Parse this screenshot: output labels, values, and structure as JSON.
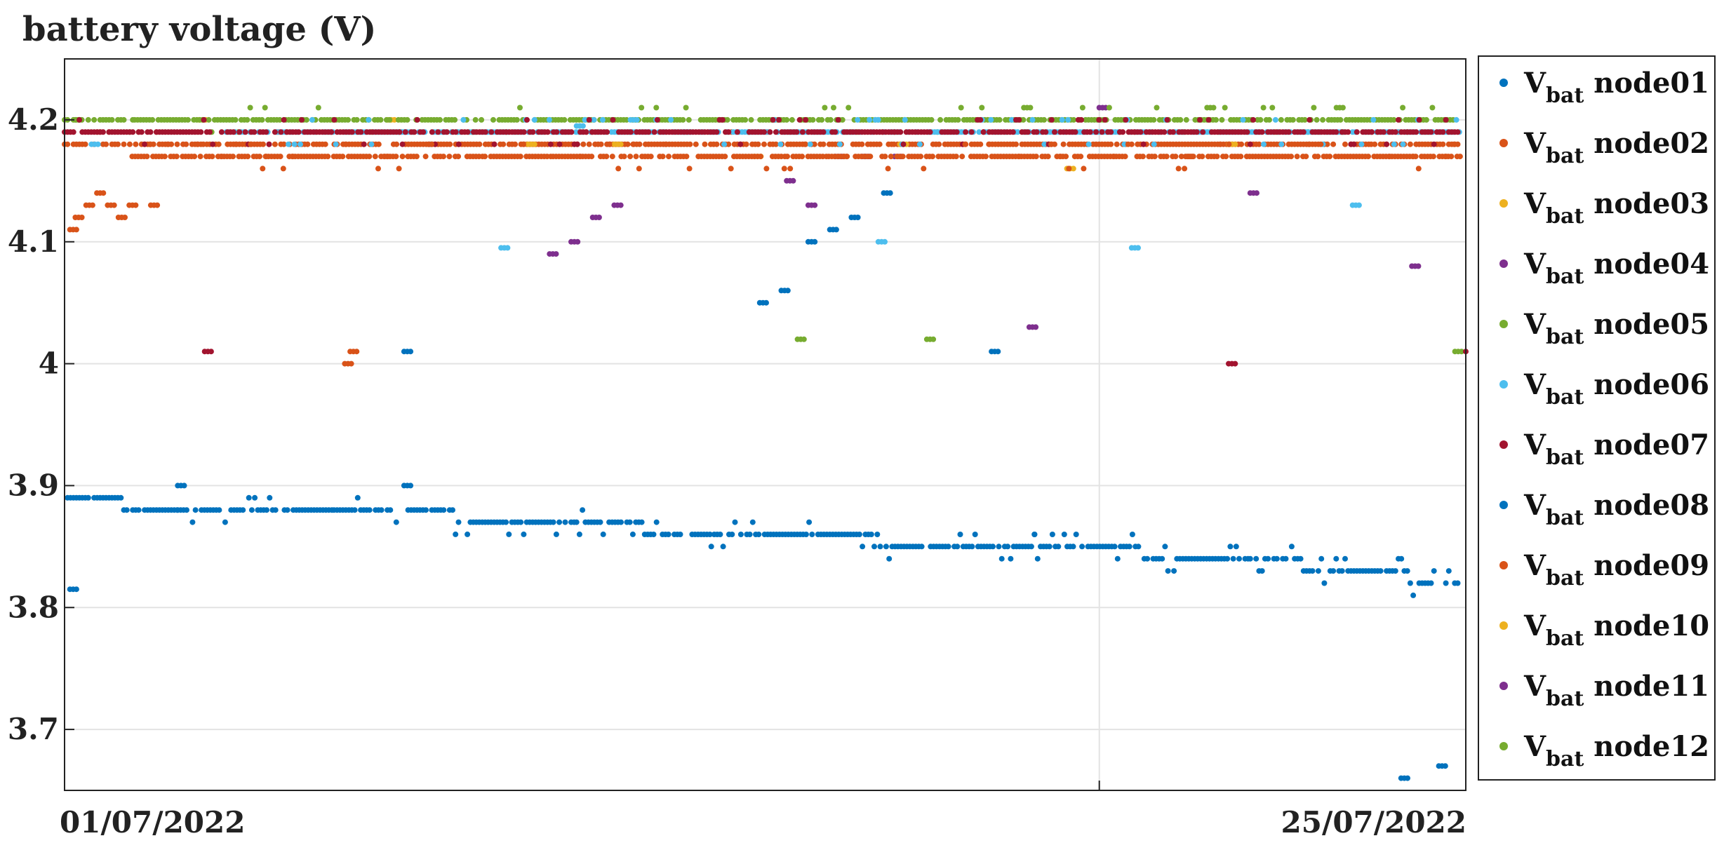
{
  "chart_data": {
    "type": "scatter",
    "title": "battery voltage (V)",
    "xlabel": "",
    "ylabel": "",
    "x_range": [
      "01/07/2022",
      "26/07/2022"
    ],
    "ylim": [
      3.65,
      4.25
    ],
    "y_ticks": [
      3.7,
      3.8,
      3.9,
      4.0,
      4.1,
      4.2
    ],
    "y_tick_labels": [
      "3.7",
      "3.8",
      "3.9",
      "4",
      "4.1",
      "4.2"
    ],
    "x_tick_labels": [
      "01/07/2022",
      "25/07/2022"
    ],
    "grid": true,
    "legend_position": "right-outside",
    "legend_prefix": "V",
    "legend_subscript": "bat",
    "series": [
      {
        "name": "node01",
        "color": "#0072BD",
        "segments": [
          [
            0,
            3.89
          ],
          [
            2.1,
            3.88
          ],
          [
            5,
            3.88
          ],
          [
            9.5,
            3.87
          ],
          [
            12,
            3.86
          ],
          [
            18,
            3.85
          ],
          [
            22,
            3.84
          ],
          [
            25.9,
            3.82
          ]
        ],
        "outliers": [
          [
            0.1,
            3.815
          ],
          [
            2.1,
            3.9
          ],
          [
            6.3,
            3.9
          ],
          [
            6.3,
            4.01
          ],
          [
            12.9,
            4.05
          ],
          [
            13.3,
            4.06
          ],
          [
            13.8,
            4.1
          ],
          [
            14.2,
            4.11
          ],
          [
            14.6,
            4.12
          ],
          [
            15.2,
            4.14
          ],
          [
            17.2,
            4.01
          ],
          [
            24.8,
            3.66
          ],
          [
            25.5,
            3.67
          ]
        ]
      },
      {
        "name": "node02",
        "color": "#D95319",
        "segments": [
          [
            0,
            4.18
          ],
          [
            25.9,
            4.18
          ]
        ],
        "outliers": [
          [
            0.1,
            4.11
          ],
          [
            0.2,
            4.12
          ],
          [
            0.4,
            4.13
          ],
          [
            0.8,
            4.13
          ],
          [
            1.2,
            4.13
          ],
          [
            1.6,
            4.13
          ],
          [
            0.6,
            4.14
          ],
          [
            1,
            4.12
          ],
          [
            5.2,
            4.0
          ],
          [
            5.3,
            4.01
          ],
          [
            20.8,
            4.17
          ]
        ]
      },
      {
        "name": "node03",
        "color": "#EDB120",
        "segments": [],
        "outliers": [
          [
            2.5,
            4.2
          ],
          [
            6.0,
            4.2
          ],
          [
            7.5,
            4.19
          ],
          [
            8.6,
            4.18
          ],
          [
            10.2,
            4.18
          ],
          [
            12.8,
            4.17
          ],
          [
            15.5,
            4.18
          ],
          [
            18.6,
            4.16
          ],
          [
            21.6,
            4.18
          ]
        ]
      },
      {
        "name": "node04",
        "color": "#7E2F8E",
        "segments": [],
        "outliers": [
          [
            9,
            4.09
          ],
          [
            9.4,
            4.1
          ],
          [
            9.8,
            4.12
          ],
          [
            10.2,
            4.13
          ],
          [
            13.4,
            4.15
          ],
          [
            13.8,
            4.13
          ],
          [
            14.3,
            4.17
          ],
          [
            14.8,
            4.17
          ],
          [
            15.4,
            4.17
          ],
          [
            17.9,
            4.03
          ],
          [
            19.2,
            4.21
          ],
          [
            22,
            4.14
          ],
          [
            25,
            4.08
          ]
        ]
      },
      {
        "name": "node05",
        "color": "#77AC30",
        "segments": [
          [
            0,
            4.2
          ],
          [
            1.3,
            4.2
          ],
          [
            13.5,
            4.2
          ],
          [
            25.9,
            4.2
          ]
        ],
        "outliers": [
          [
            0.2,
            4.2
          ],
          [
            13.6,
            4.02
          ],
          [
            16,
            4.02
          ],
          [
            25.8,
            4.01
          ],
          [
            17.8,
            4.21
          ],
          [
            21.2,
            4.21
          ],
          [
            23.6,
            4.21
          ]
        ]
      },
      {
        "name": "node06",
        "color": "#4DBEEE",
        "segments": [
          [
            3,
            4.19
          ],
          [
            25.9,
            4.19
          ]
        ],
        "outliers": [
          [
            0.5,
            4.18
          ],
          [
            6.2,
            4.19
          ],
          [
            8.1,
            4.095
          ],
          [
            11.5,
            4.19
          ],
          [
            15.1,
            4.1
          ],
          [
            19.8,
            4.095
          ],
          [
            23.9,
            4.13
          ],
          [
            9.5,
            4.195
          ],
          [
            10.5,
            4.2
          ]
        ]
      },
      {
        "name": "node07",
        "color": "#A2142F",
        "segments": [
          [
            0,
            4.19
          ],
          [
            25.9,
            4.19
          ]
        ],
        "outliers": [
          [
            2.6,
            4.01
          ],
          [
            21.6,
            4.0
          ],
          [
            26,
            4.01
          ]
        ]
      },
      {
        "name": "node08",
        "color": "#0072BD",
        "segments": [],
        "outliers": []
      },
      {
        "name": "node09",
        "color": "#D95319",
        "segments": [
          [
            1.2,
            4.17
          ],
          [
            25.9,
            4.17
          ]
        ],
        "outliers": []
      },
      {
        "name": "node10",
        "color": "#EDB120",
        "segments": [],
        "outliers": []
      },
      {
        "name": "node11",
        "color": "#7E2F8E",
        "segments": [],
        "outliers": []
      },
      {
        "name": "node12",
        "color": "#77AC30",
        "segments": [],
        "outliers": []
      }
    ]
  }
}
